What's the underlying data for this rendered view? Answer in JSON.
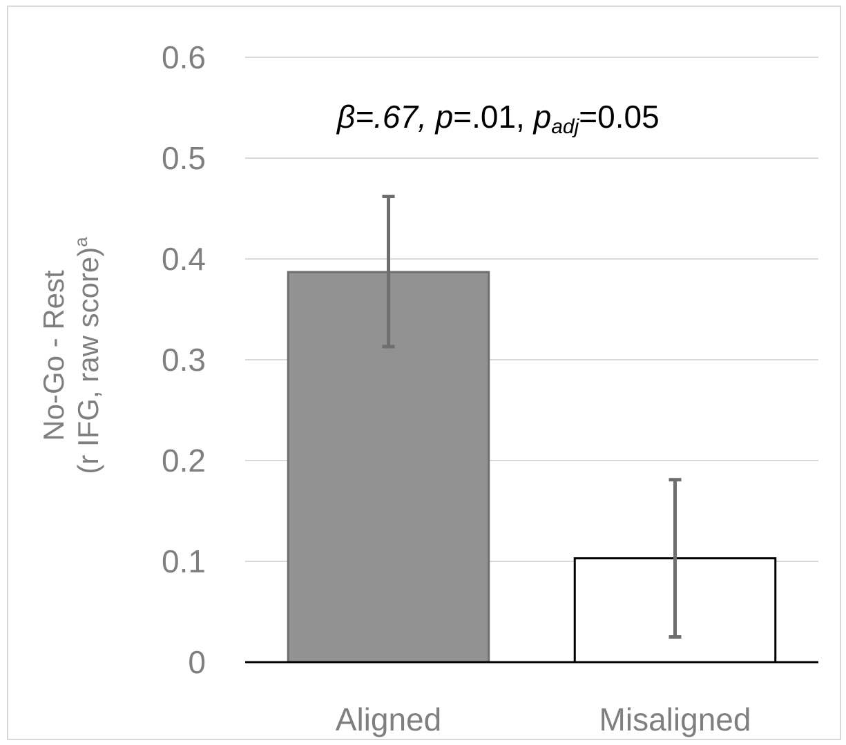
{
  "chart_data": {
    "type": "bar",
    "categories": [
      "Aligned",
      "Misaligned"
    ],
    "values": [
      0.387,
      0.103
    ],
    "error_bars": [
      {
        "lower": 0.313,
        "upper": 0.462
      },
      {
        "lower": 0.025,
        "upper": 0.181
      }
    ],
    "bar_colors": [
      "#929292",
      "#ffffff"
    ],
    "bar_border": "#6e6e6e",
    "errorbar_color": "#6e6e6e",
    "ylim": [
      0,
      0.6
    ],
    "yticks": [
      0,
      0.1,
      0.2,
      0.3,
      0.4,
      0.5,
      0.6
    ],
    "ytick_labels": [
      "0",
      "0.1",
      "0.2",
      "0.3",
      "0.4",
      "0.5",
      "0.6"
    ],
    "ylabel_line1": "No-Go - Rest",
    "ylabel_line2": "(r IFG, raw score)",
    "ylabel_superscript": "a",
    "grid": true,
    "grid_color": "#d9d9d9",
    "annotation": {
      "beta_symbol": "β",
      "beta_value": "=.67, ",
      "p_symbol": "p",
      "p_value": "=.01, ",
      "padj_symbol": "p",
      "padj_subscript": "adj",
      "padj_value": "=0.05"
    }
  }
}
